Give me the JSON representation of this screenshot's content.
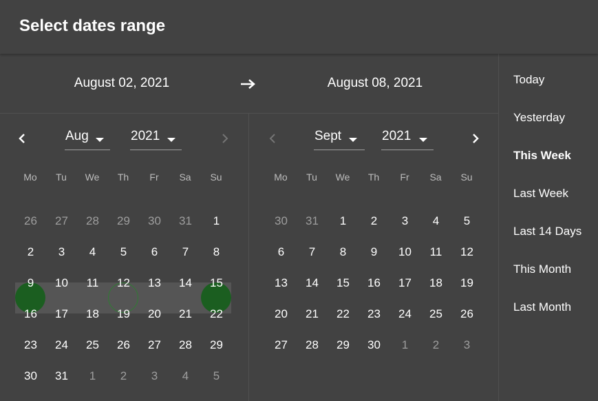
{
  "dialog": {
    "title": "Select dates range"
  },
  "range": {
    "start": "August 02, 2021",
    "end": "August 08, 2021"
  },
  "weekdays": [
    "Mo",
    "Tu",
    "We",
    "Th",
    "Fr",
    "Sa",
    "Su"
  ],
  "left_calendar": {
    "month": "Aug",
    "year": "2021",
    "weeks": [
      [
        "26",
        "27",
        "28",
        "29",
        "30",
        "31",
        "1"
      ],
      [
        "2",
        "3",
        "4",
        "5",
        "6",
        "7",
        "8"
      ],
      [
        "9",
        "10",
        "11",
        "12",
        "13",
        "14",
        "15"
      ],
      [
        "16",
        "17",
        "18",
        "19",
        "20",
        "21",
        "22"
      ],
      [
        "23",
        "24",
        "25",
        "26",
        "27",
        "28",
        "29"
      ],
      [
        "30",
        "31",
        "1",
        "2",
        "3",
        "4",
        "5"
      ]
    ]
  },
  "right_calendar": {
    "month": "Sept",
    "year": "2021",
    "weeks": [
      [
        "30",
        "31",
        "1",
        "2",
        "3",
        "4",
        "5"
      ],
      [
        "6",
        "7",
        "8",
        "9",
        "10",
        "11",
        "12"
      ],
      [
        "13",
        "14",
        "15",
        "16",
        "17",
        "18",
        "19"
      ],
      [
        "20",
        "21",
        "22",
        "23",
        "24",
        "25",
        "26"
      ],
      [
        "27",
        "28",
        "29",
        "30",
        "1",
        "2",
        "3"
      ]
    ]
  },
  "presets": [
    "Today",
    "Yesterday",
    "This Week",
    "Last Week",
    "Last 14 Days",
    "This Month",
    "Last Month"
  ],
  "active_preset": "This Week",
  "colors": {
    "background": "#424242",
    "selected_day": "#1b5e20",
    "today_ring": "#2e7d32",
    "range_band": "#555555"
  },
  "icons": {
    "prev": "chevron-left-icon",
    "next": "chevron-right-icon",
    "range_arrow": "arrow-right-icon",
    "dropdown": "caret-down-icon"
  }
}
